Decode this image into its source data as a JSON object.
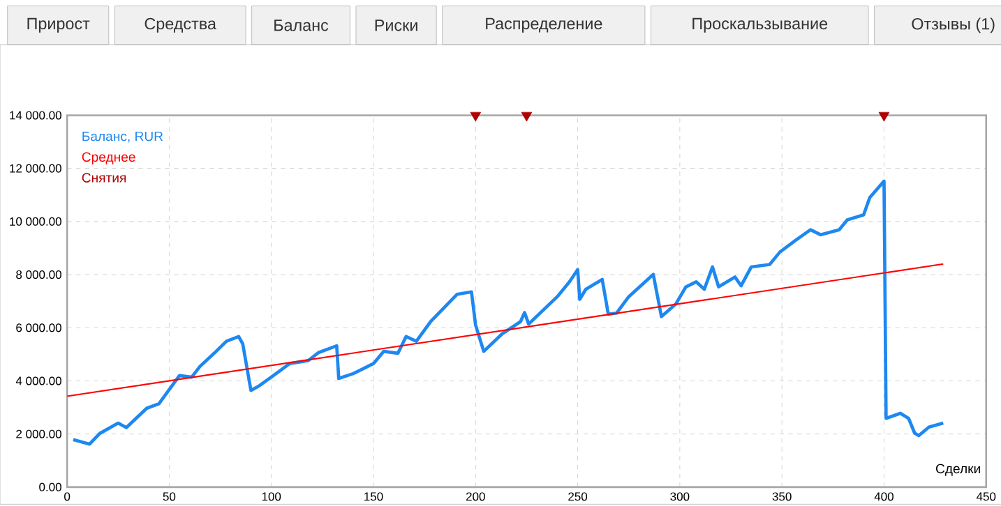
{
  "chart_data": {
    "type": "line",
    "xlabel": "Сделки",
    "annotations": [
      "Прирост",
      "Средства",
      "Баланс",
      "Риски",
      "Распределение",
      "Проскальзывание",
      "Отзывы (1)"
    ],
    "xlim": [
      0,
      450
    ],
    "xticks": [
      0,
      50,
      100,
      150,
      200,
      250,
      300,
      350,
      400,
      450
    ],
    "ylim": [
      0,
      14000
    ],
    "yticks": [
      {
        "value": 0,
        "label": "0.00"
      },
      {
        "value": 2000,
        "label": "2 000.00"
      },
      {
        "value": 4000,
        "label": "4 000.00"
      },
      {
        "value": 6000,
        "label": "6 000.00"
      },
      {
        "value": 8000,
        "label": "8 000.00"
      },
      {
        "value": 10000,
        "label": "10 000.00"
      },
      {
        "value": 12000,
        "label": "12 000.00"
      },
      {
        "value": 14000,
        "label": "14 000.00"
      }
    ],
    "grid": true,
    "legend": "top left",
    "series": [
      {
        "name": "Баланс, RUR",
        "color": "#1e88f0",
        "x": [
          3,
          11,
          16,
          25,
          29,
          39,
          45,
          55,
          61,
          65,
          72,
          78,
          84,
          86,
          90,
          94,
          101,
          109,
          118,
          123,
          132,
          133,
          140,
          150,
          155,
          162,
          166,
          171,
          178,
          191,
          198,
          200,
          204,
          213,
          222,
          224,
          226,
          240,
          246,
          250,
          251,
          254,
          262,
          265,
          269,
          275,
          287,
          291,
          298,
          303,
          308,
          312,
          316,
          319,
          327,
          330,
          335,
          344,
          349,
          357,
          364,
          369,
          378,
          382,
          390,
          393,
          400,
          401,
          408,
          412,
          415,
          417,
          422,
          429
        ],
        "values": [
          1790,
          1620,
          2020,
          2410,
          2240,
          2970,
          3140,
          4200,
          4140,
          4540,
          5040,
          5490,
          5670,
          5390,
          3640,
          3810,
          4200,
          4650,
          4760,
          5060,
          5320,
          4090,
          4270,
          4650,
          5110,
          5040,
          5670,
          5490,
          6230,
          7260,
          7350,
          6100,
          5110,
          5770,
          6230,
          6570,
          6140,
          7170,
          7730,
          8190,
          7070,
          7450,
          7820,
          6510,
          6550,
          7170,
          8010,
          6420,
          6890,
          7540,
          7730,
          7450,
          8290,
          7540,
          7910,
          7580,
          8290,
          8380,
          8850,
          9310,
          9690,
          9500,
          9690,
          10060,
          10250,
          10900,
          11520,
          2590,
          2780,
          2590,
          2030,
          1940,
          2260,
          2410
        ]
      },
      {
        "name": "Среднее",
        "color": "#ff0000",
        "x": [
          0,
          429
        ],
        "values": [
          3420,
          8400
        ]
      },
      {
        "name": "Снятия",
        "type": "scatter",
        "marker": "triangle",
        "color": "#b00000",
        "x": [
          200,
          225,
          400
        ],
        "values": [
          14000,
          14000,
          14000
        ]
      }
    ]
  }
}
